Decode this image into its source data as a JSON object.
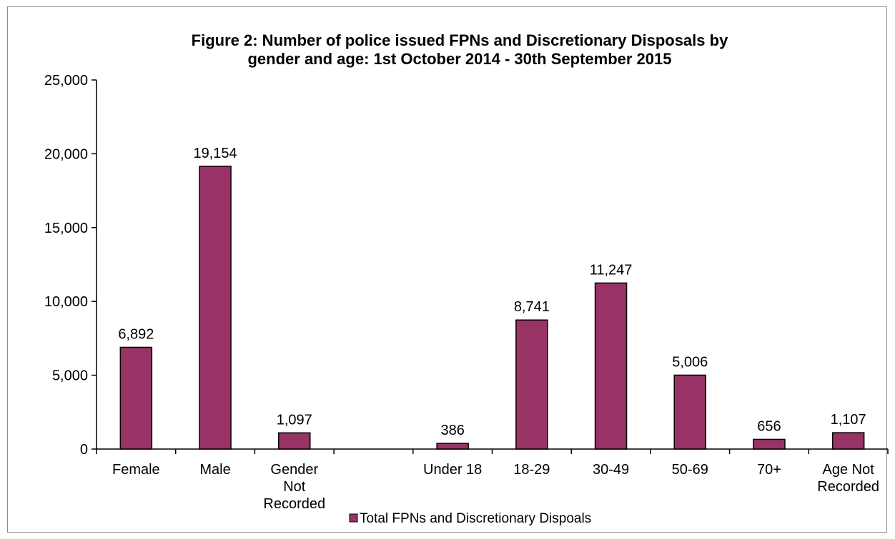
{
  "chart_data": {
    "type": "bar",
    "title": [
      "Figure 2: Number of police issued FPNs and Discretionary Disposals by",
      "gender and age: 1st October 2014 - 30th September 2015"
    ],
    "categories": [
      [
        "Female"
      ],
      [
        "Male"
      ],
      [
        "Gender",
        "Not",
        "Recorded"
      ],
      [
        ""
      ],
      [
        "Under 18"
      ],
      [
        "18-29"
      ],
      [
        "30-49"
      ],
      [
        "50-69"
      ],
      [
        "70+"
      ],
      [
        "Age Not",
        "Recorded"
      ]
    ],
    "series": [
      {
        "name": "Total FPNs and Discretionary Dispoals",
        "values": [
          6892,
          19154,
          1097,
          null,
          386,
          8741,
          11247,
          5006,
          656,
          1107
        ],
        "labels": [
          "6,892",
          "19,154",
          "1,097",
          "",
          "386",
          "8,741",
          "11,247",
          "5,006",
          "656",
          "1,107"
        ]
      }
    ],
    "ylim": [
      0,
      25000
    ],
    "yticks": [
      0,
      5000,
      10000,
      15000,
      20000,
      25000
    ],
    "ytick_labels": [
      "0",
      "5,000",
      "10,000",
      "15,000",
      "20,000",
      "25,000"
    ],
    "xlabel": "",
    "ylabel": "",
    "grid": false,
    "legend_position": "bottom",
    "colors": {
      "bar_fill": "#993366",
      "bar_stroke": "#000000",
      "axis": "#000000"
    }
  }
}
